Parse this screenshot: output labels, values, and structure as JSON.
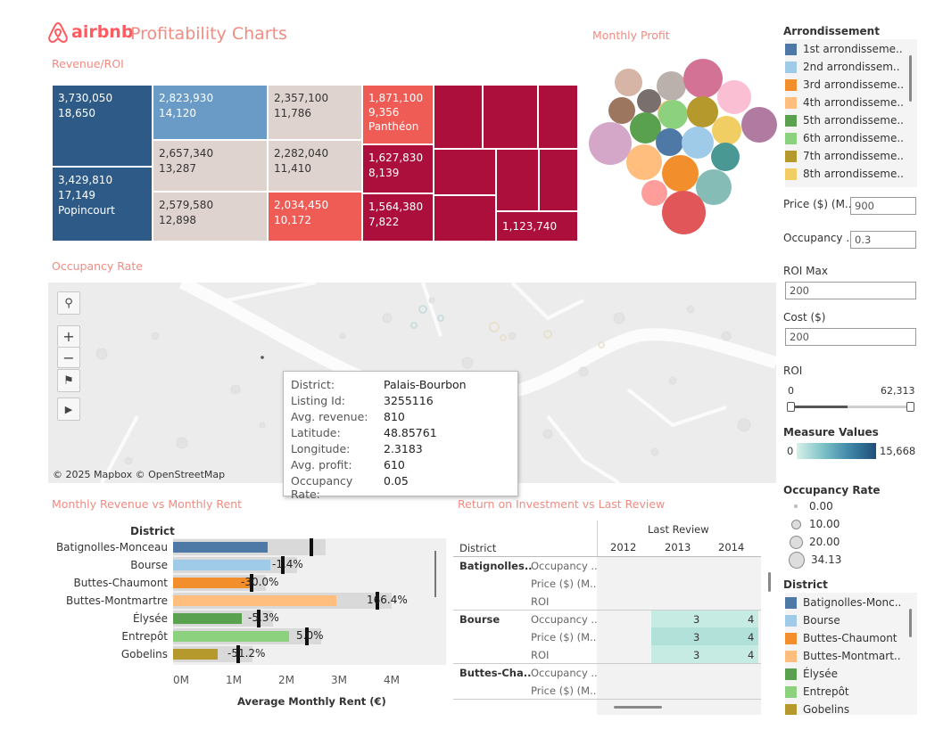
{
  "header": {
    "logo_text": "airbnb",
    "title": "Profitability Charts"
  },
  "sections": {
    "revenue_roi": "Revenue/ROI",
    "monthly_profit": "Monthly Profit",
    "occupancy_rate": "Occupancy Rate",
    "rev_vs_rent": "Monthly Revenue vs Monthly Rent",
    "roi_vs_review": "Return on Investment vs Last Review"
  },
  "treemap": [
    {
      "l1": "3,730,050",
      "l2": "18,650",
      "l3": ""
    },
    {
      "l1": "3,429,810",
      "l2": "17,149",
      "l3": "Popincourt"
    },
    {
      "l1": "2,823,930",
      "l2": "14,120",
      "l3": ""
    },
    {
      "l1": "2,657,340",
      "l2": "13,287",
      "l3": ""
    },
    {
      "l1": "2,579,580",
      "l2": "12,898",
      "l3": ""
    },
    {
      "l1": "2,357,100",
      "l2": "11,786",
      "l3": ""
    },
    {
      "l1": "2,282,040",
      "l2": "11,410",
      "l3": ""
    },
    {
      "l1": "2,034,450",
      "l2": "10,172",
      "l3": ""
    },
    {
      "l1": "1,871,100",
      "l2": "9,356",
      "l3": "Panthéon"
    },
    {
      "l1": "1,627,830",
      "l2": "8,139",
      "l3": ""
    },
    {
      "l1": "1,564,380",
      "l2": "7,822",
      "l3": ""
    },
    {
      "l1": "1,123,740",
      "l2": "",
      "l3": ""
    }
  ],
  "arrondissement_legend": {
    "title": "Arrondissement",
    "items": [
      {
        "label": "1st arrondisseme..",
        "color": "#4e79a7"
      },
      {
        "label": "2nd arrondissem..",
        "color": "#a0cbe8"
      },
      {
        "label": "3rd arrondisseme..",
        "color": "#f28e2b"
      },
      {
        "label": "4th arrondisseme..",
        "color": "#ffbe7d"
      },
      {
        "label": "5th arrondisseme..",
        "color": "#59a14f"
      },
      {
        "label": "6th arrondisseme..",
        "color": "#8cd17d"
      },
      {
        "label": "7th arrondisseme..",
        "color": "#b6992d"
      },
      {
        "label": "8th arrondisseme..",
        "color": "#f1ce63"
      }
    ]
  },
  "params": {
    "price_label": "Price ($) (M..",
    "price_value": "900",
    "occupancy_label": "Occupancy ..",
    "occupancy_value": "0.3",
    "roi_max_label": "ROI Max",
    "roi_max_value": "200",
    "cost_label": "Cost ($)",
    "cost_value": "200",
    "roi_label": "ROI",
    "roi_min": "0",
    "roi_max": "62,313"
  },
  "measure_values": {
    "title": "Measure Values",
    "min": "0",
    "max": "15,668"
  },
  "occupancy_legend": {
    "title": "Occupancy Rate",
    "items": [
      "0.00",
      "10.00",
      "20.00",
      "34.13"
    ]
  },
  "district_legend": {
    "title": "District",
    "items": [
      {
        "label": "Batignolles-Monc..",
        "color": "#4e79a7"
      },
      {
        "label": "Bourse",
        "color": "#a0cbe8"
      },
      {
        "label": "Buttes-Chaumont",
        "color": "#f28e2b"
      },
      {
        "label": "Buttes-Montmart..",
        "color": "#ffbe7d"
      },
      {
        "label": "Élysée",
        "color": "#59a14f"
      },
      {
        "label": "Entrepôt",
        "color": "#8cd17d"
      },
      {
        "label": "Gobelins",
        "color": "#b6992d"
      }
    ]
  },
  "map": {
    "attribution": "© 2025 Mapbox © OpenStreetMap",
    "tooltip": [
      {
        "k": "District:",
        "v": "Palais-Bourbon"
      },
      {
        "k": "Listing Id:",
        "v": "3255116"
      },
      {
        "k": "Avg. revenue:",
        "v": "810"
      },
      {
        "k": "Latitude:",
        "v": "48.85761"
      },
      {
        "k": "Longitude:",
        "v": "2.3183"
      },
      {
        "k": "Avg. profit:",
        "v": "610"
      },
      {
        "k": "Occupancy Rate:",
        "v": "0.05"
      }
    ]
  },
  "bar_chart": {
    "header": "District",
    "xlabel": "Average Monthly Rent (€)",
    "ticks": [
      "0M",
      "1M",
      "2M",
      "3M",
      "4M"
    ],
    "rows": [
      {
        "label": "Batignolles-Monceau",
        "revenue": 1.8,
        "rent": 2.6,
        "pct": ""
      },
      {
        "label": "Bourse",
        "revenue": 1.85,
        "rent": 2.05,
        "pct": "-1.4%"
      },
      {
        "label": "Buttes-Chaumont",
        "revenue": 1.45,
        "rent": 1.45,
        "pct": "-30.0%"
      },
      {
        "label": "Buttes-Montmartre",
        "revenue": 3.1,
        "rent": 3.85,
        "pct": "166.4%"
      },
      {
        "label": "Élysée",
        "revenue": 1.3,
        "rent": 1.6,
        "pct": "-5.3%"
      },
      {
        "label": "Entrepôt",
        "revenue": 2.2,
        "rent": 2.5,
        "pct": "5.0%"
      },
      {
        "label": "Gobelins",
        "revenue": 0.85,
        "rent": 1.2,
        "pct": "-51.2%"
      }
    ]
  },
  "crosstab": {
    "col_header": "Last Review",
    "row_header": "District",
    "years": [
      "2012",
      "2013",
      "2014"
    ],
    "groups": [
      {
        "district": "Batignolles..",
        "measures": [
          "Occupancy ..",
          "Price ($) (M..",
          "ROI"
        ],
        "values": [
          [
            "",
            "",
            ""
          ],
          [
            "",
            "",
            ""
          ],
          [
            "",
            "",
            ""
          ]
        ]
      },
      {
        "district": "Bourse",
        "measures": [
          "Occupancy ..",
          "Price ($) (M..",
          "ROI"
        ],
        "values": [
          [
            "",
            "3",
            "4"
          ],
          [
            "",
            "3",
            "4"
          ],
          [
            "",
            "3",
            "4"
          ]
        ]
      },
      {
        "district": "Buttes-Cha..",
        "measures": [
          "Occupancy ..",
          "Price ($) (M.."
        ],
        "values": [
          [
            "",
            "",
            ""
          ],
          [
            "",
            "",
            ""
          ]
        ]
      }
    ]
  }
}
